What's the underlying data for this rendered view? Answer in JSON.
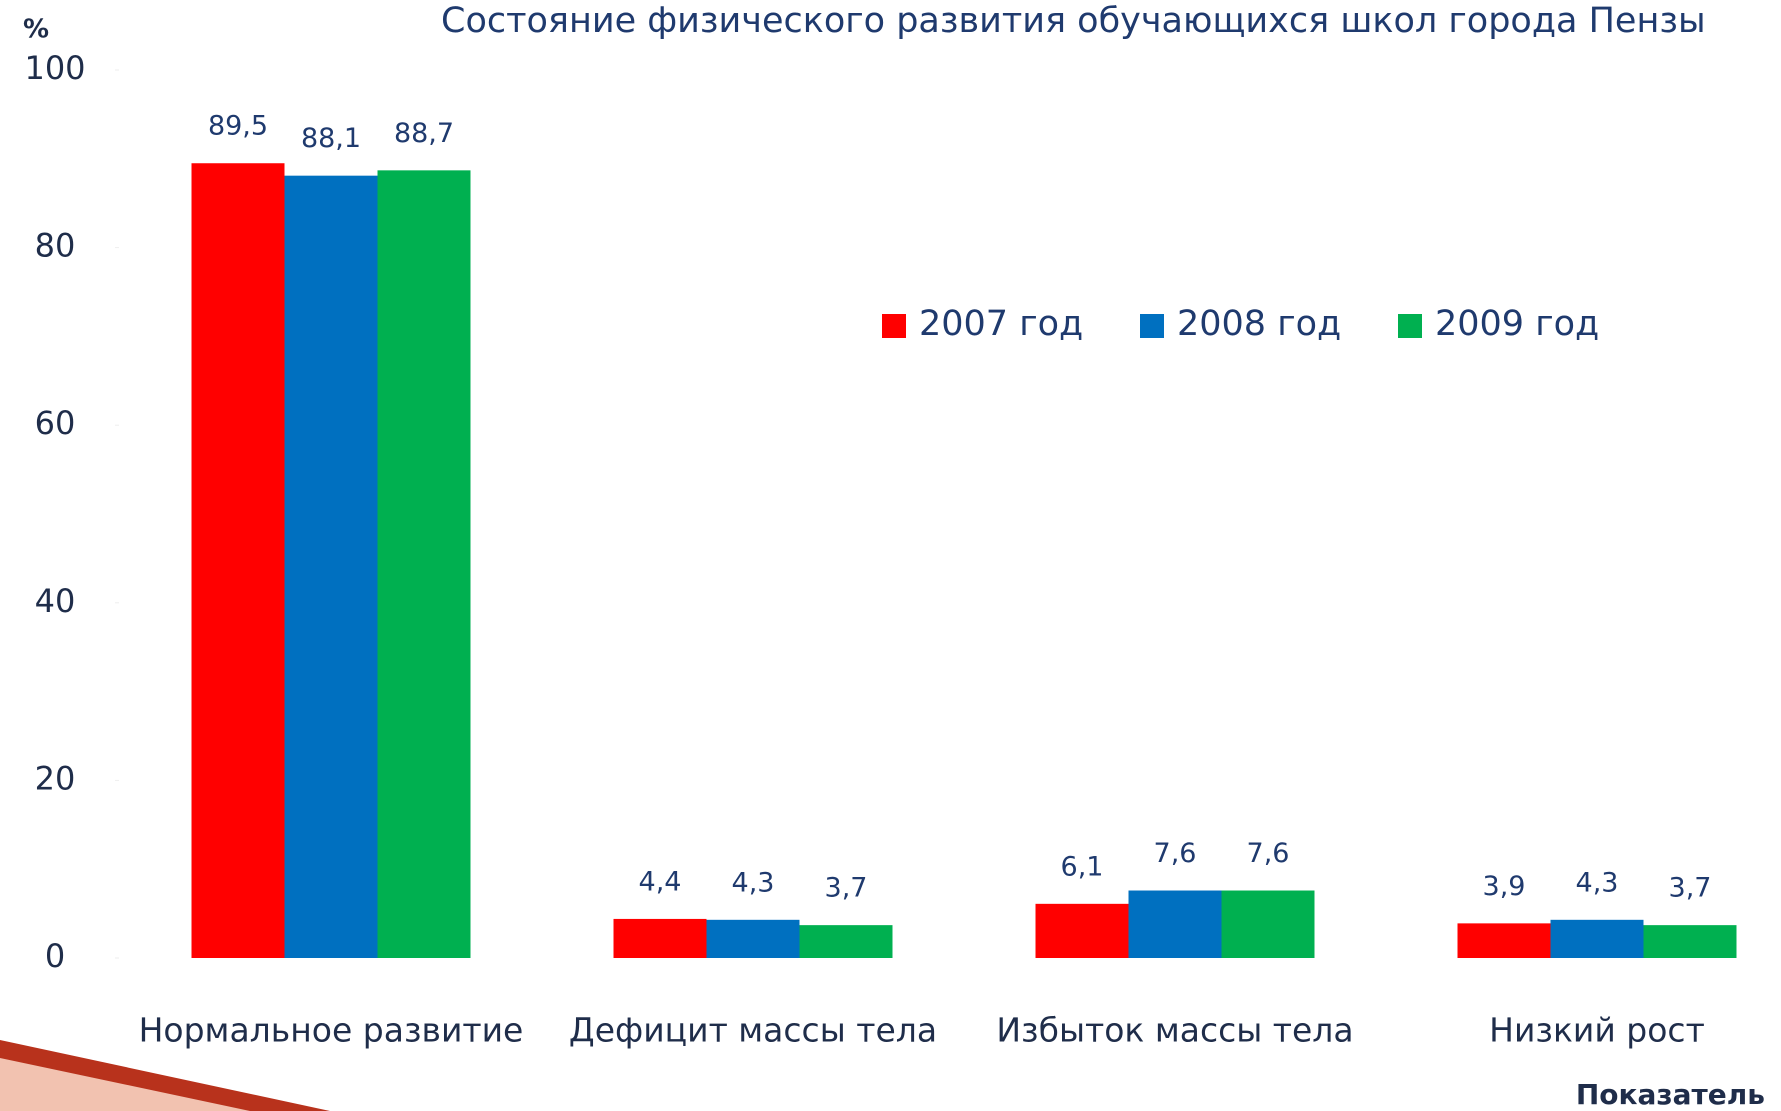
{
  "chart_data": {
    "type": "bar",
    "title": "Состояние физического развития обучающихся школ города Пензы",
    "y_label": "%",
    "x_label": "Показатель",
    "categories": [
      "Нормальное развитие",
      "Дефицит массы тела",
      "Избыток массы тела",
      "Низкий рост"
    ],
    "series": [
      {
        "name": "2007 год",
        "color": "#ff0000",
        "values": [
          89.5,
          4.4,
          6.1,
          3.9
        ],
        "value_labels": [
          "89,5",
          "4,4",
          "6,1",
          "3,9"
        ]
      },
      {
        "name": "2008 год",
        "color": "#0070c0",
        "values": [
          88.1,
          4.3,
          7.6,
          4.3
        ],
        "value_labels": [
          "88,1",
          "4,3",
          "7,6",
          "4,3"
        ]
      },
      {
        "name": "2009 год",
        "color": "#00b050",
        "values": [
          88.7,
          3.7,
          7.6,
          3.7
        ],
        "value_labels": [
          "88,7",
          "3,7",
          "7,6",
          "3,7"
        ]
      }
    ],
    "ylim": [
      0,
      100
    ],
    "yticks": [
      0,
      20,
      40,
      60,
      80,
      100
    ],
    "grid": false
  }
}
